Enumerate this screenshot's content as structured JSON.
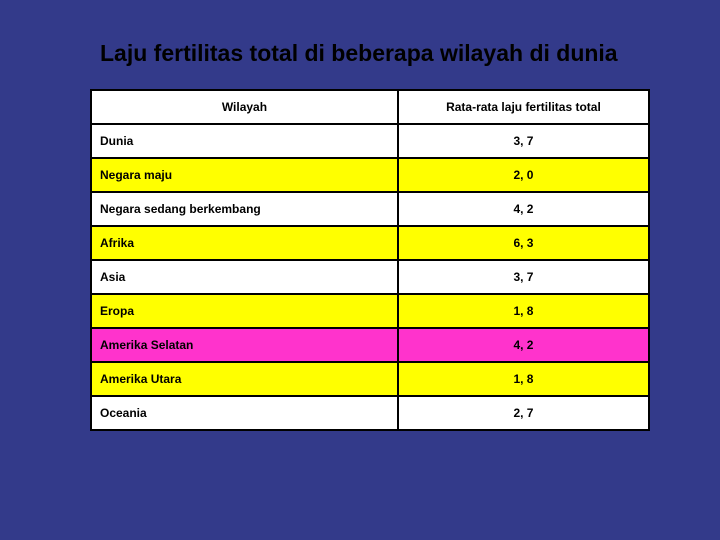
{
  "title": "Laju fertilitas total di beberapa wilayah di dunia",
  "table": {
    "columns": [
      "Wilayah",
      "Rata-rata laju fertilitas total"
    ],
    "rows": [
      {
        "region": "Dunia",
        "value": "3, 7",
        "bg": "#ffffff"
      },
      {
        "region": "Negara maju",
        "value": "2, 0",
        "bg": "#ffff00"
      },
      {
        "region": "Negara sedang berkembang",
        "value": "4, 2",
        "bg": "#ffffff"
      },
      {
        "region": "Afrika",
        "value": "6, 3",
        "bg": "#ffff00"
      },
      {
        "region": "Asia",
        "value": "3, 7",
        "bg": "#ffffff"
      },
      {
        "region": "Eropa",
        "value": "1, 8",
        "bg": "#ffff00"
      },
      {
        "region": "Amerika Selatan",
        "value": "4, 2",
        "bg": "#ff33cc"
      },
      {
        "region": "Amerika Utara",
        "value": "1, 8",
        "bg": "#ffff00"
      },
      {
        "region": "Oceania",
        "value": "2, 7",
        "bg": "#ffffff"
      }
    ]
  }
}
